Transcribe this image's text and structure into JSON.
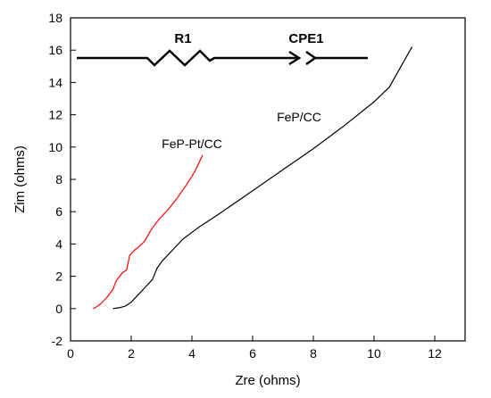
{
  "chart_data": {
    "type": "line",
    "xlabel": "Zre (ohms)",
    "ylabel": "Zim (ohms)",
    "xlim": [
      0,
      13
    ],
    "ylim": [
      -2,
      18
    ],
    "xticks": [
      0,
      2,
      4,
      6,
      8,
      10,
      12
    ],
    "yticks": [
      -2,
      0,
      2,
      4,
      6,
      8,
      10,
      12,
      14,
      16,
      18
    ],
    "grid": false,
    "series": [
      {
        "name": "FeP-Pt/CC",
        "color": "#ff0000",
        "points": [
          [
            0.75,
            0.0
          ],
          [
            0.85,
            0.1
          ],
          [
            1.0,
            0.3
          ],
          [
            1.2,
            0.7
          ],
          [
            1.4,
            1.2
          ],
          [
            1.5,
            1.7
          ],
          [
            1.7,
            2.2
          ],
          [
            1.85,
            2.4
          ],
          [
            1.95,
            3.3
          ],
          [
            2.1,
            3.6
          ],
          [
            2.3,
            3.9
          ],
          [
            2.45,
            4.2
          ],
          [
            2.6,
            4.7
          ],
          [
            2.7,
            5.0
          ],
          [
            2.9,
            5.5
          ],
          [
            3.2,
            6.1
          ],
          [
            3.5,
            6.8
          ],
          [
            3.8,
            7.6
          ],
          [
            4.1,
            8.5
          ],
          [
            4.35,
            9.5
          ]
        ]
      },
      {
        "name": "FeP/CC",
        "color": "#000000",
        "points": [
          [
            1.4,
            0.0
          ],
          [
            1.6,
            0.05
          ],
          [
            1.8,
            0.15
          ],
          [
            2.0,
            0.4
          ],
          [
            2.2,
            0.8
          ],
          [
            2.4,
            1.2
          ],
          [
            2.55,
            1.5
          ],
          [
            2.7,
            1.8
          ],
          [
            2.85,
            2.5
          ],
          [
            3.0,
            2.9
          ],
          [
            3.3,
            3.5
          ],
          [
            3.7,
            4.3
          ],
          [
            4.2,
            5.0
          ],
          [
            5.0,
            6.0
          ],
          [
            6.0,
            7.3
          ],
          [
            7.0,
            8.6
          ],
          [
            8.0,
            9.9
          ],
          [
            9.0,
            11.3
          ],
          [
            10.0,
            12.8
          ],
          [
            10.5,
            13.7
          ],
          [
            11.25,
            16.2
          ]
        ]
      }
    ],
    "annotations": {
      "circuit_labels": [
        "R1",
        "CPE1"
      ]
    }
  }
}
